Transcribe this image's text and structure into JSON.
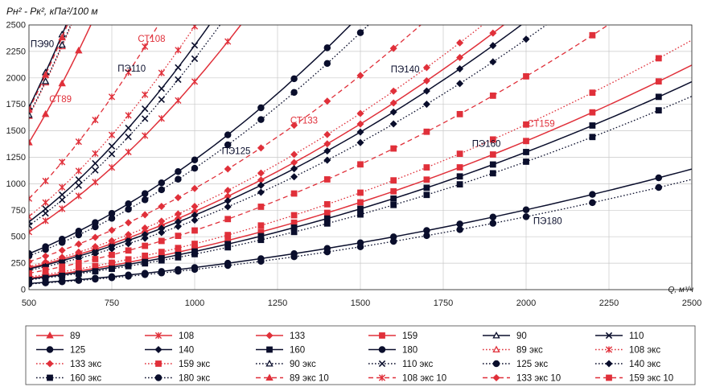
{
  "chart_data": {
    "type": "line",
    "ylabel": "Pн² - Pк², кПа²/100 м",
    "xlabel": "Q, м³/ч",
    "xlim": [
      500,
      2500
    ],
    "ylim": [
      0,
      2500
    ],
    "xticks": [
      500,
      750,
      1000,
      1250,
      1500,
      1750,
      2000,
      2250,
      2500
    ],
    "yticks": [
      0,
      250,
      500,
      750,
      1000,
      1250,
      1500,
      1750,
      2000,
      2250,
      2500
    ],
    "grid": true,
    "colors": {
      "red": "#e0303a",
      "dark": "#0a0e2c"
    },
    "annotations": [
      {
        "text": "ПЭ90",
        "x": 540,
        "y": 2290,
        "color": "dark"
      },
      {
        "text": "СТ108",
        "x": 870,
        "y": 2340,
        "color": "red"
      },
      {
        "text": "ПЭ110",
        "x": 810,
        "y": 2060,
        "color": "dark"
      },
      {
        "text": "СТ89",
        "x": 595,
        "y": 1770,
        "color": "red"
      },
      {
        "text": "ПЭ140",
        "x": 1635,
        "y": 2050,
        "color": "dark"
      },
      {
        "text": "СТ133",
        "x": 1330,
        "y": 1570,
        "color": "red"
      },
      {
        "text": "ПЭ125",
        "x": 1125,
        "y": 1280,
        "color": "dark"
      },
      {
        "text": "СТ159",
        "x": 2045,
        "y": 1540,
        "color": "red"
      },
      {
        "text": "ПЭ160",
        "x": 1880,
        "y": 1350,
        "color": "dark"
      },
      {
        "text": "ПЭ180",
        "x": 2065,
        "y": 620,
        "color": "dark"
      }
    ],
    "series": [
      {
        "name": "89",
        "color": "red",
        "dash": "solid",
        "marker": "triangle",
        "k": 1390
      },
      {
        "name": "108",
        "color": "red",
        "dash": "solid",
        "marker": "star",
        "k": 545
      },
      {
        "name": "133",
        "color": "red",
        "dash": "solid",
        "marker": "diamond",
        "k": 205
      },
      {
        "name": "159",
        "color": "red",
        "dash": "solid",
        "marker": "square",
        "k": 108
      },
      {
        "name": "90",
        "color": "dark",
        "dash": "solid",
        "marker": "triangle-open",
        "k": 1720
      },
      {
        "name": "110",
        "color": "dark",
        "dash": "solid",
        "marker": "x",
        "k": 640
      },
      {
        "name": "125",
        "color": "dark",
        "dash": "solid",
        "marker": "circle",
        "k": 340
      },
      {
        "name": "140",
        "color": "dark",
        "dash": "solid",
        "marker": "diamond",
        "k": 195
      },
      {
        "name": "160",
        "color": "dark",
        "dash": "solid",
        "marker": "square",
        "k": 100
      },
      {
        "name": "180",
        "color": "dark",
        "dash": "solid",
        "marker": "circle",
        "k": 58
      },
      {
        "name": "89 экс",
        "color": "red",
        "dash": "dot",
        "marker": "triangle-open",
        "k": 1640
      },
      {
        "name": "108 экс",
        "color": "red",
        "dash": "dot",
        "marker": "star",
        "k": 690
      },
      {
        "name": "133 экс",
        "color": "red",
        "dash": "dot",
        "marker": "diamond",
        "k": 218
      },
      {
        "name": "159 экс",
        "color": "red",
        "dash": "dot",
        "marker": "square",
        "k": 120
      },
      {
        "name": "90 экс",
        "color": "dark",
        "dash": "dot",
        "marker": "triangle-open",
        "k": 1650
      },
      {
        "name": "110 экс",
        "color": "dark",
        "dash": "dot",
        "marker": "x",
        "k": 605
      },
      {
        "name": "125 экс",
        "color": "dark",
        "dash": "dot",
        "marker": "circle",
        "k": 318
      },
      {
        "name": "140 экс",
        "color": "dark",
        "dash": "dot",
        "marker": "diamond",
        "k": 182
      },
      {
        "name": "160 экс",
        "color": "dark",
        "dash": "dot",
        "marker": "square",
        "k": 93
      },
      {
        "name": "180 экс",
        "color": "dark",
        "dash": "dot",
        "marker": "circle",
        "k": 53
      },
      {
        "name": "89 экс 10",
        "color": "red",
        "dash": "dash",
        "marker": "triangle",
        "k": 1700
      },
      {
        "name": "108 экс 10",
        "color": "red",
        "dash": "dash",
        "marker": "star",
        "k": 860
      },
      {
        "name": "133 экс 10",
        "color": "red",
        "dash": "dash",
        "marker": "diamond",
        "k": 265
      },
      {
        "name": "159 экс 10",
        "color": "red",
        "dash": "dash",
        "marker": "square",
        "k": 155
      }
    ]
  }
}
